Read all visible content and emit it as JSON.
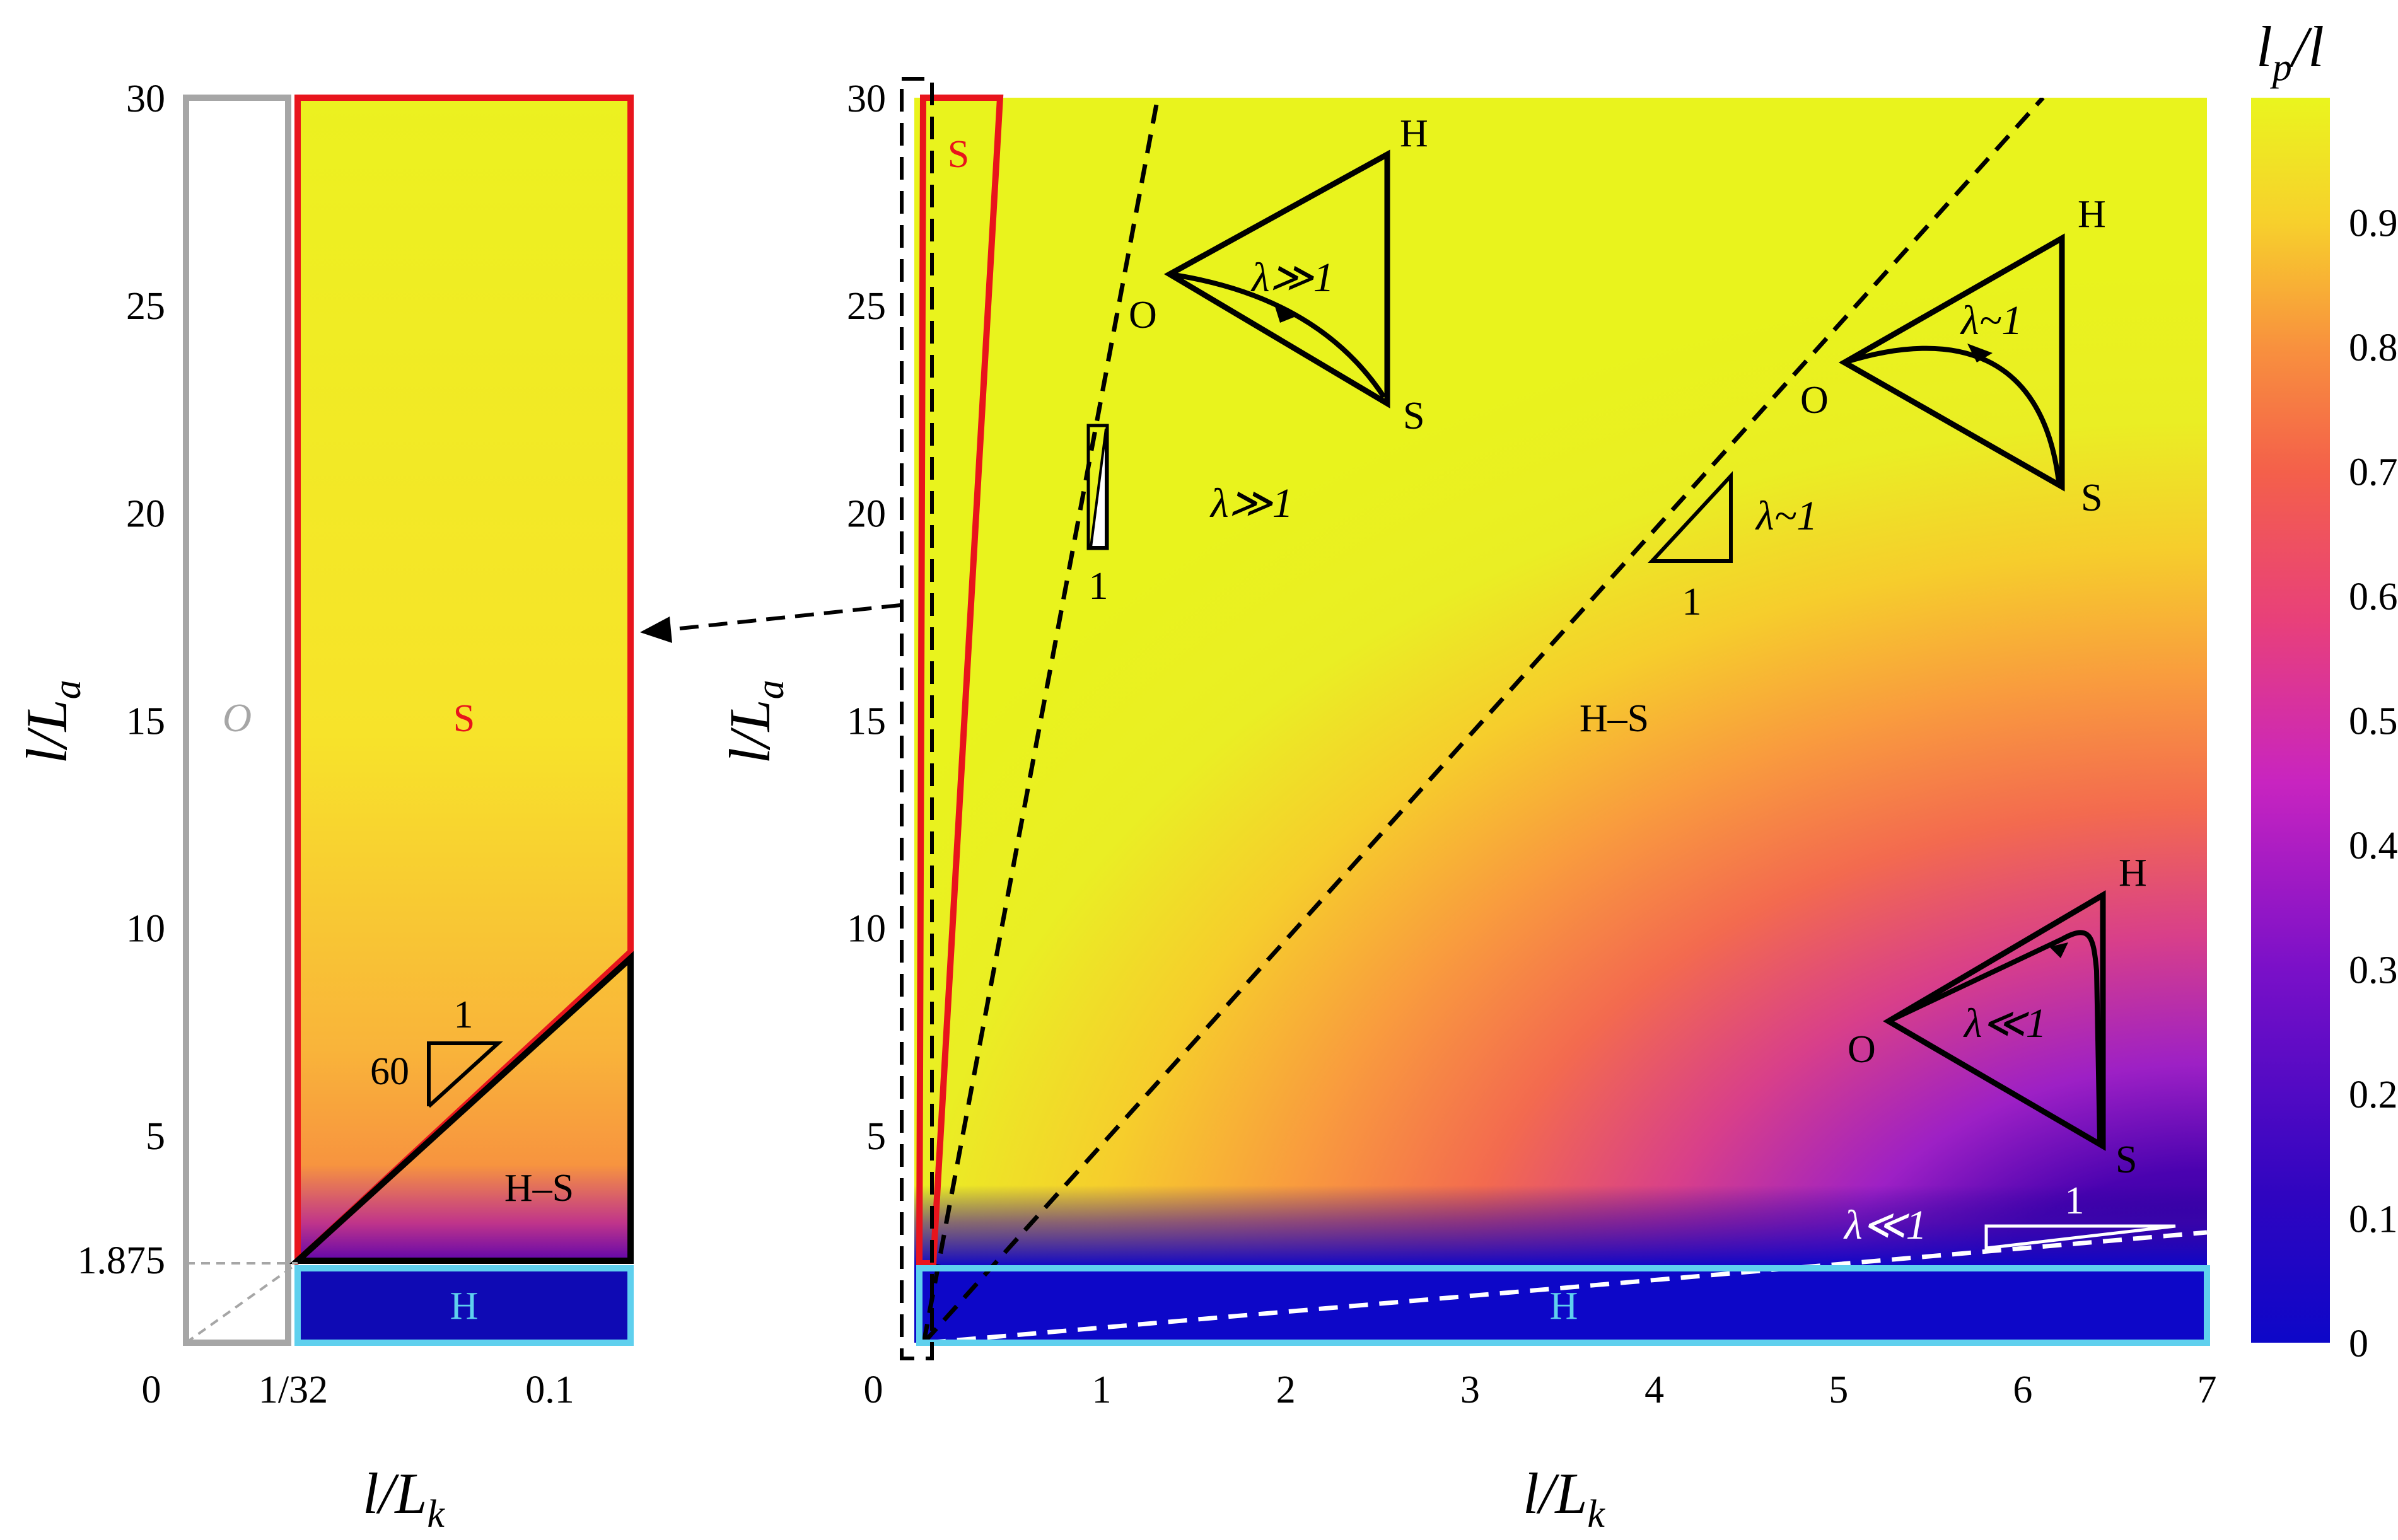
{
  "chart_data": [
    {
      "type": "region_map",
      "panel": "left",
      "xlabel": "l/L",
      "xlabel_sub": "k",
      "ylabel": "l/L",
      "ylabel_sub": "a",
      "x_tick_labels": [
        "0",
        "1/32",
        "0.1"
      ],
      "y_ticks": [
        0,
        5,
        10,
        15,
        20,
        25,
        30
      ],
      "y_tick_labels": [
        "5",
        "10",
        "15",
        "20",
        "25",
        "30"
      ],
      "y_extra_tick": 1.875,
      "y_extra_tick_label": "1.875",
      "x_zero_label": "0",
      "ylim": [
        0,
        30
      ],
      "regions": [
        {
          "label": "O",
          "color": "#a6a6a6",
          "x_range": [
            0,
            0.03125
          ],
          "y_range": [
            0,
            30
          ]
        },
        {
          "label": "S",
          "color": "#e8141c",
          "polygon_data": [
            [
              0.03125,
              1.875
            ],
            [
              0.03125,
              30
            ],
            [
              0.1,
              30
            ],
            [
              0.1,
              9.4
            ]
          ]
        },
        {
          "label": "H–S",
          "color": "#000000",
          "polygon_data": [
            [
              0.03125,
              1.875
            ],
            [
              0.1,
              9.4
            ],
            [
              0.1,
              1.875
            ]
          ]
        },
        {
          "label": "H",
          "color": "#5fd0ee",
          "x_range": [
            0.03125,
            0.1
          ],
          "y_range": [
            0,
            1.875
          ]
        }
      ],
      "slope_triangle": {
        "rise_label": "1",
        "run_label": "60"
      }
    },
    {
      "type": "heatmap",
      "panel": "right",
      "xlabel": "l/L",
      "xlabel_sub": "k",
      "ylabel": "l/L",
      "ylabel_sub": "a",
      "x_ticks": [
        0,
        1,
        2,
        3,
        4,
        5,
        6,
        7
      ],
      "y_ticks": [
        5,
        10,
        15,
        20,
        25,
        30
      ],
      "xlim": [
        0,
        7
      ],
      "ylim": [
        0,
        30
      ],
      "colorbar": {
        "label": "l",
        "label_sub": "p",
        "label_tail": "/l",
        "ticks": [
          0,
          0.1,
          0.2,
          0.3,
          0.4,
          0.5,
          0.6,
          0.7,
          0.8,
          0.9
        ],
        "tick_labels": [
          "0",
          "0.1",
          "0.2",
          "0.3",
          "0.4",
          "0.5",
          "0.6",
          "0.7",
          "0.8",
          "0.9"
        ],
        "range": [
          0,
          1
        ],
        "colors": [
          "#0d0887",
          "#2c04a8",
          "#6a00a8",
          "#b12a90",
          "#e16462",
          "#f89441",
          "#fcce25",
          "#f0f921"
        ]
      },
      "regions": [
        {
          "label": "S",
          "color": "#e8141c"
        },
        {
          "label": "H–S",
          "color": "#000000"
        },
        {
          "label": "H",
          "color": "#5fd0ee",
          "y_range": [
            0,
            1.875
          ]
        }
      ],
      "boundary_lines": [
        {
          "name": "lambda-much-greater",
          "slope": 22,
          "style": "dashed",
          "color": "#000000"
        },
        {
          "name": "lambda-similar",
          "slope": 4.4,
          "style": "dashed",
          "color": "#000000"
        },
        {
          "name": "lambda-much-less",
          "slope": 0.37,
          "style": "dashed",
          "color": "#ffffff"
        }
      ],
      "annotations": {
        "lam_gg_label": "λ≫1",
        "lam_sim_label": "λ~1",
        "lam_ll_label": "λ≪1",
        "slope_one": "1"
      },
      "ternary_insets": [
        {
          "vertex_labels": [
            "H",
            "O",
            "S"
          ],
          "path_label": "λ≫1"
        },
        {
          "vertex_labels": [
            "H",
            "O",
            "S"
          ],
          "path_label": "λ~1"
        },
        {
          "vertex_labels": [
            "H",
            "O",
            "S"
          ],
          "path_label": "λ≪1"
        }
      ]
    }
  ]
}
